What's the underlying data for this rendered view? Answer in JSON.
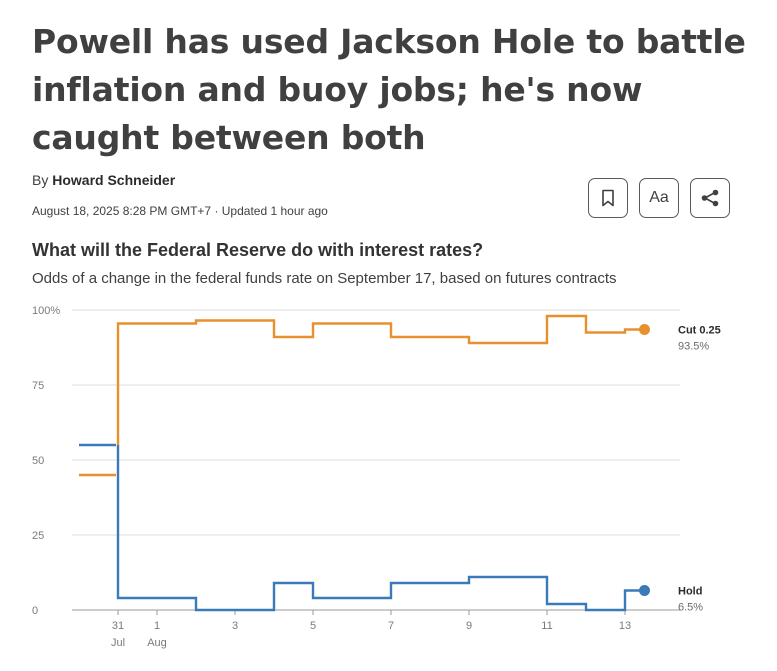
{
  "article": {
    "headline": "Powell has used Jackson Hole to battle inflation and buoy jobs; he's now caught between both",
    "byline_prefix": "By",
    "author": "Howard Schneider",
    "dateline": "August 18, 2025 8:28 PM GMT+7 · Updated 1 hour ago"
  },
  "tools": {
    "bookmark_icon": "bookmark-icon",
    "text_size_label": "Aa",
    "share_icon": "share-icon"
  },
  "chart_data": {
    "type": "line",
    "step": true,
    "title": "What will the Federal Reserve do with interest rates?",
    "subtitle": "Odds of a change in the federal funds rate on September 17, based on futures contracts",
    "xlabel": "",
    "ylabel": "",
    "ylim": [
      0,
      100
    ],
    "xlim": [
      -1,
      14.5
    ],
    "grid": true,
    "yticks": [
      {
        "value": 100,
        "label": "100%"
      },
      {
        "value": 75,
        "label": "75"
      },
      {
        "value": 50,
        "label": "50"
      },
      {
        "value": 25,
        "label": "25"
      },
      {
        "value": 0,
        "label": "0"
      }
    ],
    "xticks": [
      {
        "value": 0,
        "label": "31",
        "sublabel": "Jul"
      },
      {
        "value": 1,
        "label": "1",
        "sublabel": "Aug"
      },
      {
        "value": 3,
        "label": "3",
        "sublabel": ""
      },
      {
        "value": 5,
        "label": "5",
        "sublabel": ""
      },
      {
        "value": 7,
        "label": "7",
        "sublabel": ""
      },
      {
        "value": 9,
        "label": "9",
        "sublabel": ""
      },
      {
        "value": 11,
        "label": "11",
        "sublabel": ""
      },
      {
        "value": 13,
        "label": "13",
        "sublabel": ""
      }
    ],
    "series": [
      {
        "name": "Cut 0.25",
        "end_label": "93.5%",
        "color": "#e8902e",
        "points": [
          {
            "x": -1,
            "y": 45
          },
          {
            "x": 0,
            "y": 95.5
          },
          {
            "x": 1,
            "y": 95.5
          },
          {
            "x": 2,
            "y": 96.5
          },
          {
            "x": 3,
            "y": 96.5
          },
          {
            "x": 4,
            "y": 91
          },
          {
            "x": 5,
            "y": 95.5
          },
          {
            "x": 6,
            "y": 95.5
          },
          {
            "x": 7,
            "y": 91
          },
          {
            "x": 8,
            "y": 91
          },
          {
            "x": 9,
            "y": 89
          },
          {
            "x": 10,
            "y": 89
          },
          {
            "x": 11,
            "y": 98
          },
          {
            "x": 12,
            "y": 92.5
          },
          {
            "x": 13,
            "y": 93.5
          },
          {
            "x": 13.5,
            "y": 93.5
          }
        ]
      },
      {
        "name": "Hold",
        "end_label": "6.5%",
        "color": "#3a7ab8",
        "points": [
          {
            "x": -1,
            "y": 55
          },
          {
            "x": 0,
            "y": 4
          },
          {
            "x": 1,
            "y": 4
          },
          {
            "x": 2,
            "y": 0
          },
          {
            "x": 3,
            "y": 0
          },
          {
            "x": 4,
            "y": 9
          },
          {
            "x": 5,
            "y": 4
          },
          {
            "x": 6,
            "y": 4
          },
          {
            "x": 7,
            "y": 9
          },
          {
            "x": 8,
            "y": 9
          },
          {
            "x": 9,
            "y": 11
          },
          {
            "x": 10,
            "y": 11
          },
          {
            "x": 11,
            "y": 2
          },
          {
            "x": 12,
            "y": 0
          },
          {
            "x": 13,
            "y": 6.5
          },
          {
            "x": 13.5,
            "y": 6.5
          }
        ]
      }
    ]
  }
}
